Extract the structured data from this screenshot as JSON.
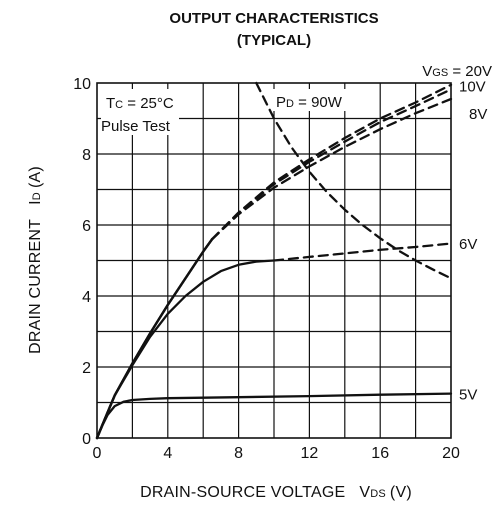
{
  "chart_data": {
    "type": "line",
    "title": "OUTPUT CHARACTERISTICS",
    "subtitle": "(TYPICAL)",
    "xlabel": {
      "main": "DRAIN-SOURCE VOLTAGE",
      "sym": "V",
      "sub": "DS",
      "unit": "(V)"
    },
    "ylabel": {
      "main": "DRAIN CURRENT",
      "sym": "I",
      "sub": "D",
      "unit": "(A)"
    },
    "xlim": [
      0,
      20
    ],
    "ylim": [
      0,
      10
    ],
    "xticks": [
      0,
      4,
      8,
      12,
      16,
      20
    ],
    "yticks": [
      0,
      2,
      4,
      6,
      8,
      10
    ],
    "grid": true,
    "conditions": {
      "tc": {
        "sym": "T",
        "sub": "C",
        "text": " = 25°C"
      },
      "pulse": "Pulse Test",
      "pd": {
        "sym": "P",
        "sub": "D",
        "text": " = 90W"
      }
    },
    "vgs_label": {
      "sym": "V",
      "sub": "GS",
      "text": " = 20V"
    },
    "series": [
      {
        "name": "20V",
        "label_y": 9.82,
        "label_offset": -1,
        "solid": [
          [
            0,
            0
          ],
          [
            0.5,
            0.6
          ],
          [
            1,
            1.2
          ],
          [
            2,
            2.1
          ],
          [
            3,
            2.95
          ],
          [
            4,
            3.75
          ],
          [
            5,
            4.5
          ],
          [
            6,
            5.25
          ],
          [
            6.5,
            5.6
          ]
        ],
        "dashed": [
          [
            6.5,
            5.6
          ],
          [
            8,
            6.35
          ],
          [
            10,
            7.2
          ],
          [
            12,
            7.85
          ],
          [
            14,
            8.45
          ],
          [
            16,
            9.0
          ],
          [
            18,
            9.45
          ],
          [
            20,
            9.95
          ]
        ]
      },
      {
        "name": "10V",
        "label_y": 9.82,
        "label_offset": 0,
        "solid": [
          [
            0,
            0
          ],
          [
            0.5,
            0.6
          ],
          [
            1,
            1.2
          ],
          [
            2,
            2.1
          ],
          [
            3,
            2.95
          ],
          [
            4,
            3.75
          ],
          [
            5,
            4.5
          ],
          [
            6,
            5.25
          ],
          [
            6.5,
            5.6
          ]
        ],
        "dashed": [
          [
            6.5,
            5.6
          ],
          [
            8,
            6.35
          ],
          [
            10,
            7.15
          ],
          [
            12,
            7.78
          ],
          [
            14,
            8.35
          ],
          [
            16,
            8.9
          ],
          [
            18,
            9.35
          ],
          [
            20,
            9.82
          ]
        ]
      },
      {
        "name": "8V",
        "label_y": 9.55,
        "label_offset": 14,
        "solid": [
          [
            0,
            0
          ],
          [
            0.5,
            0.6
          ],
          [
            1,
            1.2
          ],
          [
            2,
            2.1
          ],
          [
            3,
            2.95
          ],
          [
            4,
            3.75
          ],
          [
            5,
            4.5
          ],
          [
            6,
            5.25
          ],
          [
            6.5,
            5.6
          ]
        ],
        "dashed": [
          [
            6.5,
            5.6
          ],
          [
            8,
            6.3
          ],
          [
            10,
            7.05
          ],
          [
            12,
            7.65
          ],
          [
            14,
            8.2
          ],
          [
            16,
            8.7
          ],
          [
            18,
            9.15
          ],
          [
            20,
            9.55
          ]
        ]
      },
      {
        "name": "6V",
        "label_y": 5.5,
        "label_offset": 0,
        "solid": [
          [
            0,
            0
          ],
          [
            0.5,
            0.6
          ],
          [
            1,
            1.2
          ],
          [
            2,
            2.05
          ],
          [
            3,
            2.85
          ],
          [
            4,
            3.5
          ],
          [
            5,
            4.0
          ],
          [
            6,
            4.4
          ],
          [
            7,
            4.7
          ],
          [
            8,
            4.88
          ],
          [
            9,
            4.97
          ],
          [
            10,
            5.0
          ]
        ],
        "dashed": [
          [
            10,
            5.0
          ],
          [
            12,
            5.1
          ],
          [
            14,
            5.2
          ],
          [
            16,
            5.3
          ],
          [
            18,
            5.38
          ],
          [
            20,
            5.48
          ]
        ]
      },
      {
        "name": "5V",
        "label_y": 1.25,
        "label_offset": 0,
        "solid": [
          [
            0,
            0
          ],
          [
            0.3,
            0.35
          ],
          [
            0.6,
            0.65
          ],
          [
            1,
            0.9
          ],
          [
            1.5,
            1.02
          ],
          [
            2,
            1.07
          ],
          [
            3,
            1.1
          ],
          [
            4,
            1.12
          ],
          [
            8,
            1.15
          ],
          [
            12,
            1.18
          ],
          [
            16,
            1.22
          ],
          [
            20,
            1.25
          ]
        ],
        "dashed": []
      }
    ],
    "power_limit": {
      "name": "PD = 90W",
      "points": [
        [
          9,
          10
        ],
        [
          10,
          9
        ],
        [
          11,
          8.18
        ],
        [
          12,
          7.5
        ],
        [
          13,
          6.92
        ],
        [
          14,
          6.43
        ],
        [
          15,
          6.0
        ],
        [
          16,
          5.625
        ],
        [
          17,
          5.29
        ],
        [
          18,
          5.0
        ],
        [
          19,
          4.74
        ],
        [
          20,
          4.5
        ]
      ]
    }
  }
}
